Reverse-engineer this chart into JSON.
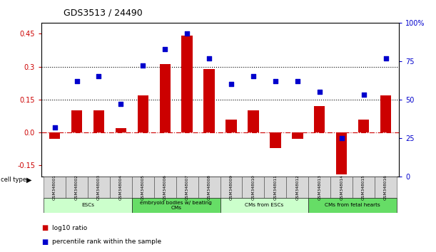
{
  "title": "GDS3513 / 24490",
  "samples": [
    "GSM348001",
    "GSM348002",
    "GSM348003",
    "GSM348004",
    "GSM348005",
    "GSM348006",
    "GSM348007",
    "GSM348008",
    "GSM348009",
    "GSM348010",
    "GSM348011",
    "GSM348012",
    "GSM348013",
    "GSM348014",
    "GSM348015",
    "GSM348016"
  ],
  "log10_ratio": [
    -0.03,
    0.1,
    0.1,
    0.02,
    0.17,
    0.31,
    0.44,
    0.29,
    0.06,
    0.1,
    -0.07,
    -0.03,
    0.12,
    -0.19,
    0.06,
    0.17
  ],
  "percentile_rank": [
    32,
    62,
    65,
    47,
    72,
    83,
    93,
    77,
    60,
    65,
    62,
    62,
    55,
    25,
    53,
    77
  ],
  "cell_type_groups": [
    {
      "label": "ESCs",
      "start": 0,
      "end": 3,
      "color": "#ccffcc"
    },
    {
      "label": "embryoid bodies w/ beating\nCMs",
      "start": 4,
      "end": 7,
      "color": "#66dd66"
    },
    {
      "label": "CMs from ESCs",
      "start": 8,
      "end": 11,
      "color": "#ccffcc"
    },
    {
      "label": "CMs from fetal hearts",
      "start": 12,
      "end": 15,
      "color": "#66dd66"
    }
  ],
  "bar_color": "#cc0000",
  "dot_color": "#0000cc",
  "ylim_left": [
    -0.2,
    0.5
  ],
  "ylim_right": [
    0,
    100
  ],
  "yticks_left": [
    -0.15,
    0.0,
    0.15,
    0.3,
    0.45
  ],
  "yticks_right": [
    0,
    25,
    50,
    75,
    100
  ],
  "hlines": [
    0.15,
    0.3
  ],
  "zero_line_color": "#cc0000",
  "dotted_line_color": "#000000",
  "label_log10": "log10 ratio",
  "label_percentile": "percentile rank within the sample",
  "cell_type_label": "cell type"
}
